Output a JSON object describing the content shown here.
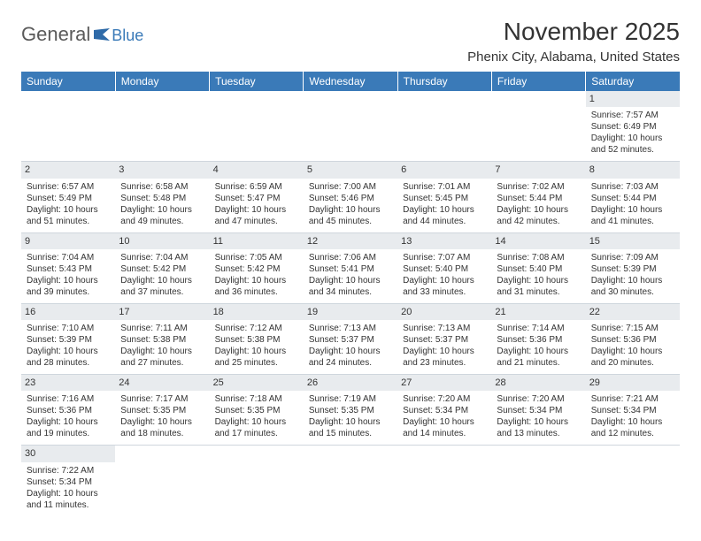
{
  "brand": {
    "general": "General",
    "blue": "Blue"
  },
  "title": "November 2025",
  "location": "Phenix City, Alabama, United States",
  "header_bg": "#3a7ab8",
  "day_headers": [
    "Sunday",
    "Monday",
    "Tuesday",
    "Wednesday",
    "Thursday",
    "Friday",
    "Saturday"
  ],
  "weeks": [
    [
      null,
      null,
      null,
      null,
      null,
      null,
      {
        "n": "1",
        "sr": "Sunrise: 7:57 AM",
        "ss": "Sunset: 6:49 PM",
        "d1": "Daylight: 10 hours",
        "d2": "and 52 minutes."
      }
    ],
    [
      {
        "n": "2",
        "sr": "Sunrise: 6:57 AM",
        "ss": "Sunset: 5:49 PM",
        "d1": "Daylight: 10 hours",
        "d2": "and 51 minutes."
      },
      {
        "n": "3",
        "sr": "Sunrise: 6:58 AM",
        "ss": "Sunset: 5:48 PM",
        "d1": "Daylight: 10 hours",
        "d2": "and 49 minutes."
      },
      {
        "n": "4",
        "sr": "Sunrise: 6:59 AM",
        "ss": "Sunset: 5:47 PM",
        "d1": "Daylight: 10 hours",
        "d2": "and 47 minutes."
      },
      {
        "n": "5",
        "sr": "Sunrise: 7:00 AM",
        "ss": "Sunset: 5:46 PM",
        "d1": "Daylight: 10 hours",
        "d2": "and 45 minutes."
      },
      {
        "n": "6",
        "sr": "Sunrise: 7:01 AM",
        "ss": "Sunset: 5:45 PM",
        "d1": "Daylight: 10 hours",
        "d2": "and 44 minutes."
      },
      {
        "n": "7",
        "sr": "Sunrise: 7:02 AM",
        "ss": "Sunset: 5:44 PM",
        "d1": "Daylight: 10 hours",
        "d2": "and 42 minutes."
      },
      {
        "n": "8",
        "sr": "Sunrise: 7:03 AM",
        "ss": "Sunset: 5:44 PM",
        "d1": "Daylight: 10 hours",
        "d2": "and 41 minutes."
      }
    ],
    [
      {
        "n": "9",
        "sr": "Sunrise: 7:04 AM",
        "ss": "Sunset: 5:43 PM",
        "d1": "Daylight: 10 hours",
        "d2": "and 39 minutes."
      },
      {
        "n": "10",
        "sr": "Sunrise: 7:04 AM",
        "ss": "Sunset: 5:42 PM",
        "d1": "Daylight: 10 hours",
        "d2": "and 37 minutes."
      },
      {
        "n": "11",
        "sr": "Sunrise: 7:05 AM",
        "ss": "Sunset: 5:42 PM",
        "d1": "Daylight: 10 hours",
        "d2": "and 36 minutes."
      },
      {
        "n": "12",
        "sr": "Sunrise: 7:06 AM",
        "ss": "Sunset: 5:41 PM",
        "d1": "Daylight: 10 hours",
        "d2": "and 34 minutes."
      },
      {
        "n": "13",
        "sr": "Sunrise: 7:07 AM",
        "ss": "Sunset: 5:40 PM",
        "d1": "Daylight: 10 hours",
        "d2": "and 33 minutes."
      },
      {
        "n": "14",
        "sr": "Sunrise: 7:08 AM",
        "ss": "Sunset: 5:40 PM",
        "d1": "Daylight: 10 hours",
        "d2": "and 31 minutes."
      },
      {
        "n": "15",
        "sr": "Sunrise: 7:09 AM",
        "ss": "Sunset: 5:39 PM",
        "d1": "Daylight: 10 hours",
        "d2": "and 30 minutes."
      }
    ],
    [
      {
        "n": "16",
        "sr": "Sunrise: 7:10 AM",
        "ss": "Sunset: 5:39 PM",
        "d1": "Daylight: 10 hours",
        "d2": "and 28 minutes."
      },
      {
        "n": "17",
        "sr": "Sunrise: 7:11 AM",
        "ss": "Sunset: 5:38 PM",
        "d1": "Daylight: 10 hours",
        "d2": "and 27 minutes."
      },
      {
        "n": "18",
        "sr": "Sunrise: 7:12 AM",
        "ss": "Sunset: 5:38 PM",
        "d1": "Daylight: 10 hours",
        "d2": "and 25 minutes."
      },
      {
        "n": "19",
        "sr": "Sunrise: 7:13 AM",
        "ss": "Sunset: 5:37 PM",
        "d1": "Daylight: 10 hours",
        "d2": "and 24 minutes."
      },
      {
        "n": "20",
        "sr": "Sunrise: 7:13 AM",
        "ss": "Sunset: 5:37 PM",
        "d1": "Daylight: 10 hours",
        "d2": "and 23 minutes."
      },
      {
        "n": "21",
        "sr": "Sunrise: 7:14 AM",
        "ss": "Sunset: 5:36 PM",
        "d1": "Daylight: 10 hours",
        "d2": "and 21 minutes."
      },
      {
        "n": "22",
        "sr": "Sunrise: 7:15 AM",
        "ss": "Sunset: 5:36 PM",
        "d1": "Daylight: 10 hours",
        "d2": "and 20 minutes."
      }
    ],
    [
      {
        "n": "23",
        "sr": "Sunrise: 7:16 AM",
        "ss": "Sunset: 5:36 PM",
        "d1": "Daylight: 10 hours",
        "d2": "and 19 minutes."
      },
      {
        "n": "24",
        "sr": "Sunrise: 7:17 AM",
        "ss": "Sunset: 5:35 PM",
        "d1": "Daylight: 10 hours",
        "d2": "and 18 minutes."
      },
      {
        "n": "25",
        "sr": "Sunrise: 7:18 AM",
        "ss": "Sunset: 5:35 PM",
        "d1": "Daylight: 10 hours",
        "d2": "and 17 minutes."
      },
      {
        "n": "26",
        "sr": "Sunrise: 7:19 AM",
        "ss": "Sunset: 5:35 PM",
        "d1": "Daylight: 10 hours",
        "d2": "and 15 minutes."
      },
      {
        "n": "27",
        "sr": "Sunrise: 7:20 AM",
        "ss": "Sunset: 5:34 PM",
        "d1": "Daylight: 10 hours",
        "d2": "and 14 minutes."
      },
      {
        "n": "28",
        "sr": "Sunrise: 7:20 AM",
        "ss": "Sunset: 5:34 PM",
        "d1": "Daylight: 10 hours",
        "d2": "and 13 minutes."
      },
      {
        "n": "29",
        "sr": "Sunrise: 7:21 AM",
        "ss": "Sunset: 5:34 PM",
        "d1": "Daylight: 10 hours",
        "d2": "and 12 minutes."
      }
    ],
    [
      {
        "n": "30",
        "sr": "Sunrise: 7:22 AM",
        "ss": "Sunset: 5:34 PM",
        "d1": "Daylight: 10 hours",
        "d2": "and 11 minutes."
      },
      null,
      null,
      null,
      null,
      null,
      null
    ]
  ]
}
